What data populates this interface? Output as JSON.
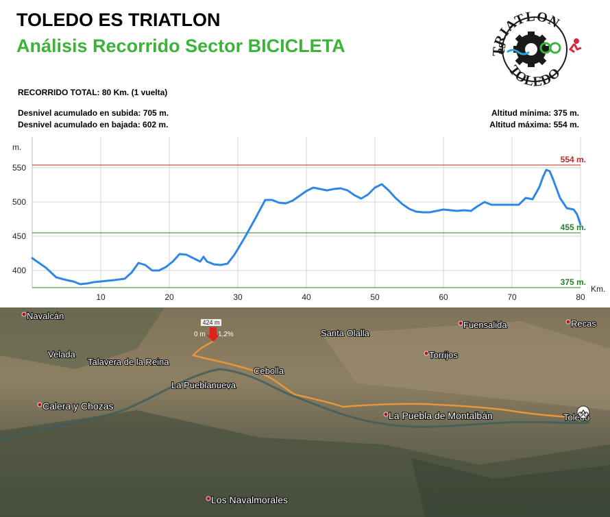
{
  "header": {
    "title": "TOLEDO ES TRIATLON",
    "subtitle": "Análisis Recorrido Sector BICICLETA"
  },
  "info": {
    "total": "RECORRIDO TOTAL: 80 Km. (1 vuelta)",
    "ascent": "Desnivel acumulado en subida: 705 m.",
    "descent": "Desnivel acumulado en bajada: 602 m.",
    "min_alt": "Altitud mínima:  375 m.",
    "max_alt": "Altitud máxima: 554 m."
  },
  "logo": {
    "text_top": "TRIATLON",
    "text_es": "es",
    "text_bottom": "TOLEDO"
  },
  "chart_data": {
    "type": "area",
    "xlabel": "Km.",
    "ylabel": "m.",
    "xlim": [
      0,
      80
    ],
    "ylim": [
      375,
      554
    ],
    "x_ticks": [
      10,
      20,
      30,
      40,
      50,
      60,
      70,
      80
    ],
    "y_ticks": [
      400,
      450,
      500,
      550
    ],
    "grid": true,
    "series": [
      {
        "color": "#2e86e6",
        "x": [
          0,
          2,
          3.5,
          5,
          6,
          7,
          8,
          9,
          10,
          12,
          13.5,
          14.5,
          15.5,
          16.5,
          17.5,
          18.5,
          19.5,
          20.5,
          21.5,
          22.5,
          23.5,
          24.5,
          25,
          25.5,
          26.5,
          27.5,
          28.5,
          29.5,
          31,
          32.5,
          34,
          35,
          36,
          37,
          38,
          39,
          40,
          41,
          42,
          43,
          44,
          45,
          46,
          47,
          48,
          49,
          50,
          51,
          52,
          53,
          54,
          55,
          56,
          57,
          58,
          59,
          60,
          61,
          62,
          63,
          64,
          65,
          66,
          67,
          68,
          69,
          70,
          71,
          72,
          73,
          74,
          74.5,
          75,
          75.5,
          76,
          77,
          78,
          79,
          79.5,
          80
        ],
        "y": [
          418,
          404,
          390,
          386,
          384,
          380,
          381,
          383,
          384,
          386,
          388,
          397,
          411,
          408,
          400,
          400,
          405,
          413,
          424,
          423,
          418,
          413,
          420,
          413,
          409,
          408,
          410,
          423,
          448,
          475,
          503,
          503,
          499,
          498,
          502,
          509,
          516,
          521,
          519,
          517,
          519,
          520,
          517,
          510,
          505,
          511,
          521,
          526,
          517,
          506,
          497,
          490,
          486,
          485,
          485,
          487,
          489,
          488,
          487,
          488,
          487,
          494,
          500,
          496,
          496,
          496,
          496,
          496,
          506,
          504,
          522,
          536,
          547,
          545,
          533,
          506,
          491,
          489,
          482,
          467
        ]
      }
    ],
    "reference_lines": [
      {
        "value": 554,
        "label": "554 m.",
        "color": "#c0262b"
      },
      {
        "value": 455,
        "label": "455 m.",
        "color": "#2c7a2c"
      },
      {
        "value": 375,
        "label": "375 m.",
        "color": "#2c7a2c"
      }
    ]
  },
  "map": {
    "towns": [
      {
        "name": "Navalcán",
        "dot": true
      },
      {
        "name": "Velada",
        "dot": false
      },
      {
        "name": "Talavera de la Reina",
        "dot": false
      },
      {
        "name": "Santa Olalla",
        "dot": false
      },
      {
        "name": "Fuensalida",
        "dot": true
      },
      {
        "name": "Recas",
        "dot": true
      },
      {
        "name": "Torrijos",
        "dot": true
      },
      {
        "name": "Cebolla",
        "dot": false
      },
      {
        "name": "La Pueblanueva",
        "dot": false
      },
      {
        "name": "Calera y Chozas",
        "dot": true
      },
      {
        "name": "La Puebla de Montalbán",
        "dot": true
      },
      {
        "name": "Toledo",
        "dot": false
      },
      {
        "name": "Los Navalmorales",
        "dot": true
      }
    ],
    "marker_label": "424 m",
    "marker_dist": "0 m",
    "marker_grade": "1,2%"
  }
}
